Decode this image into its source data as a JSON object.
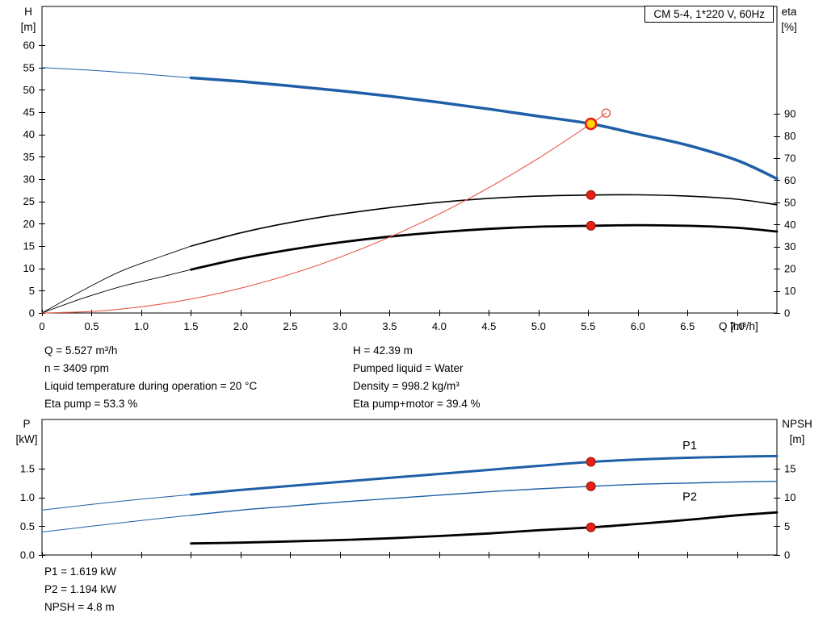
{
  "window": {
    "title_box": "CM 5-4, 1*220 V, 60Hz"
  },
  "labels": {
    "h_axis": [
      "H",
      "[m]"
    ],
    "eta_axis": [
      "eta",
      "[%]"
    ],
    "q_axis": "Q [m³/h]",
    "p_axis": [
      "P",
      "[kW]"
    ],
    "npsh_axis": [
      "NPSH",
      "[m]"
    ]
  },
  "info_panel": {
    "left": [
      "Q = 5.527 m³/h",
      "n = 3409 rpm",
      "Liquid temperature during operation = 20 °C",
      "Eta pump = 53.3 %"
    ],
    "right": [
      "H = 42.39 m",
      "Pumped liquid = Water",
      "Density = 998.2 kg/m³",
      "Eta pump+motor = 39.4 %"
    ]
  },
  "result_panel": [
    "P1 = 1.619 kW",
    "P2 = 1.194 kW",
    "NPSH = 4.8 m"
  ],
  "colors": {
    "blue": "#1f5fa8",
    "red": "#e8594b",
    "black": "#000000",
    "dot_red": "#e32119",
    "dot_edge": "#99120c",
    "duty_fill": "#ffd400",
    "axis": "#000000"
  },
  "chart_data": [
    {
      "type": "line",
      "name": "hq-eta-chart",
      "title": "CM 5-4, 1*220 V, 60Hz",
      "axes": {
        "x": {
          "label": "Q [m³/h]",
          "min": 0,
          "max": 7.4,
          "ticks": [
            0,
            0.5,
            1,
            1.5,
            2,
            2.5,
            3,
            3.5,
            4,
            4.5,
            5,
            5.5,
            6,
            6.5,
            7
          ],
          "tick_labels": [
            "0",
            "0.5",
            "1.0",
            "1.5",
            "2.0",
            "2.5",
            "3.0",
            "3.5",
            "4.0",
            "4.5",
            "5.0",
            "5.5",
            "6.0",
            "6.5",
            "7.0"
          ]
        },
        "left": {
          "label": "H [m]",
          "min": 0,
          "max": 68.7,
          "ticks": [
            0,
            5,
            10,
            15,
            20,
            25,
            30,
            35,
            40,
            45,
            50,
            55,
            60
          ],
          "tick_labels": [
            "0",
            "5",
            "10",
            "15",
            "20",
            "25",
            "30",
            "35",
            "40",
            "45",
            "50",
            "55",
            "60"
          ]
        },
        "right": {
          "label": "eta [%]",
          "min": 0,
          "max": 138.5,
          "ticks": [
            0,
            10,
            20,
            30,
            40,
            50,
            60,
            70,
            80,
            90
          ],
          "tick_labels": [
            "0",
            "10",
            "20",
            "30",
            "40",
            "50",
            "60",
            "70",
            "80",
            "90"
          ]
        }
      },
      "series": [
        {
          "name": "hq-curve-lead",
          "axis": "left",
          "color": "blue",
          "width": 1,
          "points": [
            [
              0,
              55
            ],
            [
              0.5,
              54.4
            ],
            [
              1.0,
              53.6
            ],
            [
              1.5,
              52.7
            ]
          ]
        },
        {
          "name": "hq-curve",
          "axis": "left",
          "color": "blue",
          "width": 3.5,
          "points": [
            [
              1.5,
              52.7
            ],
            [
              2,
              51.9
            ],
            [
              2.5,
              50.9
            ],
            [
              3,
              49.8
            ],
            [
              3.5,
              48.6
            ],
            [
              4,
              47.2
            ],
            [
              4.5,
              45.7
            ],
            [
              5,
              44.1
            ],
            [
              5.527,
              42.39
            ],
            [
              6,
              40.1
            ],
            [
              6.5,
              37.6
            ],
            [
              7,
              34.2
            ],
            [
              7.4,
              30.1
            ]
          ]
        },
        {
          "name": "eta-pump-lead",
          "axis": "right",
          "color": "black",
          "width": 0.9,
          "points": [
            [
              0,
              0
            ],
            [
              0.4,
              10
            ],
            [
              0.8,
              19
            ],
            [
              1.2,
              25.5
            ],
            [
              1.5,
              30.2
            ]
          ]
        },
        {
          "name": "eta-pump-curve",
          "axis": "right",
          "color": "black",
          "width": 1.6,
          "points": [
            [
              1.5,
              30.2
            ],
            [
              2,
              36.2
            ],
            [
              2.5,
              40.9
            ],
            [
              3,
              44.6
            ],
            [
              3.5,
              47.6
            ],
            [
              4,
              50
            ],
            [
              4.5,
              51.8
            ],
            [
              5,
              52.8
            ],
            [
              5.527,
              53.3
            ],
            [
              6,
              53.4
            ],
            [
              6.5,
              52.8
            ],
            [
              7,
              51.4
            ],
            [
              7.4,
              48.9
            ]
          ]
        },
        {
          "name": "eta-pump-motor-lead",
          "axis": "right",
          "color": "black",
          "width": 0.9,
          "points": [
            [
              0,
              0
            ],
            [
              0.4,
              6.5
            ],
            [
              0.8,
              12
            ],
            [
              1.2,
              16.3
            ],
            [
              1.5,
              19.6
            ]
          ]
        },
        {
          "name": "eta-pump-motor-curve",
          "axis": "right",
          "color": "black",
          "width": 2.8,
          "points": [
            [
              1.5,
              19.6
            ],
            [
              2,
              24.6
            ],
            [
              2.5,
              28.6
            ],
            [
              3,
              31.9
            ],
            [
              3.5,
              34.5
            ],
            [
              4,
              36.5
            ],
            [
              4.5,
              38
            ],
            [
              5,
              39
            ],
            [
              5.527,
              39.4
            ],
            [
              6,
              39.7
            ],
            [
              6.5,
              39.4
            ],
            [
              7,
              38.5
            ],
            [
              7.4,
              36.8
            ]
          ]
        },
        {
          "name": "system-curve",
          "axis": "left",
          "color": "red",
          "width": 1.1,
          "points": [
            [
              0,
              0
            ],
            [
              0.5,
              0.35
            ],
            [
              1,
              1.39
            ],
            [
              1.5,
              3.12
            ],
            [
              2,
              5.55
            ],
            [
              2.5,
              8.67
            ],
            [
              3,
              12.49
            ],
            [
              3.5,
              17.0
            ],
            [
              4,
              22.2
            ],
            [
              4.5,
              28.1
            ],
            [
              5,
              34.7
            ],
            [
              5.527,
              42.39
            ],
            [
              5.68,
              44.8
            ]
          ]
        }
      ],
      "markers": [
        {
          "name": "eta-pump-point",
          "q": 5.527,
          "v": 53.3,
          "axis": "right",
          "style": "dot"
        },
        {
          "name": "eta-pump-motor-point",
          "q": 5.527,
          "v": 39.4,
          "axis": "right",
          "style": "dot"
        },
        {
          "name": "projected-point",
          "q": 5.68,
          "v": 44.8,
          "axis": "left",
          "style": "open"
        },
        {
          "name": "duty-point",
          "q": 5.527,
          "v": 42.39,
          "axis": "left",
          "style": "duty"
        }
      ],
      "curve_labels": []
    },
    {
      "type": "line",
      "name": "power-npsh-chart",
      "title": "",
      "axes": {
        "x": {
          "label": "",
          "min": 0,
          "max": 7.4,
          "ticks": [
            0,
            0.5,
            1,
            1.5,
            2,
            2.5,
            3,
            3.5,
            4,
            4.5,
            5,
            5.5,
            6,
            6.5,
            7
          ]
        },
        "left": {
          "label": "P [kW]",
          "min": 0,
          "max": 2.356,
          "ticks": [
            0,
            0.5,
            1,
            1.5
          ],
          "tick_labels": [
            "0.0",
            "0.5",
            "1.0",
            "1.5"
          ]
        },
        "right": {
          "label": "NPSH [m]",
          "min": 0,
          "max": 23.56,
          "ticks": [
            0,
            5,
            10,
            15
          ],
          "tick_labels": [
            "0",
            "5",
            "10",
            "15"
          ]
        }
      },
      "series": [
        {
          "name": "p1-lead",
          "axis": "left",
          "color": "blue",
          "width": 1,
          "points": [
            [
              0,
              0.78
            ],
            [
              0.5,
              0.88
            ],
            [
              1,
              0.97
            ],
            [
              1.5,
              1.05
            ]
          ]
        },
        {
          "name": "p1-curve",
          "axis": "left",
          "color": "blue",
          "width": 3,
          "points": [
            [
              1.5,
              1.05
            ],
            [
              2,
              1.13
            ],
            [
              2.5,
              1.2
            ],
            [
              3,
              1.27
            ],
            [
              3.5,
              1.34
            ],
            [
              4,
              1.41
            ],
            [
              4.5,
              1.48
            ],
            [
              5,
              1.55
            ],
            [
              5.527,
              1.619
            ],
            [
              6,
              1.66
            ],
            [
              6.5,
              1.69
            ],
            [
              7,
              1.71
            ],
            [
              7.4,
              1.72
            ]
          ]
        },
        {
          "name": "p2-lead",
          "axis": "left",
          "color": "blue",
          "width": 1,
          "points": [
            [
              0,
              0.4
            ],
            [
              0.5,
              0.5
            ],
            [
              1,
              0.6
            ],
            [
              1.5,
              0.69
            ]
          ]
        },
        {
          "name": "p2-curve",
          "axis": "left",
          "color": "blue",
          "width": 1.4,
          "points": [
            [
              1.5,
              0.69
            ],
            [
              2,
              0.78
            ],
            [
              2.5,
              0.85
            ],
            [
              3,
              0.92
            ],
            [
              3.5,
              0.98
            ],
            [
              4,
              1.04
            ],
            [
              4.5,
              1.1
            ],
            [
              5,
              1.15
            ],
            [
              5.527,
              1.194
            ],
            [
              6,
              1.23
            ],
            [
              6.5,
              1.25
            ],
            [
              7,
              1.27
            ],
            [
              7.4,
              1.28
            ]
          ]
        },
        {
          "name": "npsh-curve",
          "axis": "right",
          "color": "black",
          "width": 2.8,
          "points": [
            [
              1.5,
              2.0
            ],
            [
              2,
              2.15
            ],
            [
              2.5,
              2.35
            ],
            [
              3,
              2.6
            ],
            [
              3.5,
              2.9
            ],
            [
              4,
              3.3
            ],
            [
              4.5,
              3.75
            ],
            [
              5,
              4.3
            ],
            [
              5.527,
              4.8
            ],
            [
              6,
              5.4
            ],
            [
              6.5,
              6.1
            ],
            [
              7,
              6.9
            ],
            [
              7.4,
              7.4
            ]
          ]
        }
      ],
      "markers": [
        {
          "name": "p1-point",
          "q": 5.527,
          "v": 1.619,
          "axis": "left",
          "style": "dot"
        },
        {
          "name": "p2-point",
          "q": 5.527,
          "v": 1.194,
          "axis": "left",
          "style": "dot"
        },
        {
          "name": "npsh-point",
          "q": 5.527,
          "v": 4.8,
          "axis": "right",
          "style": "dot"
        }
      ],
      "curve_labels": [
        {
          "text": "P1",
          "q": 6.45,
          "v": 1.84,
          "axis": "left",
          "color": "blue"
        },
        {
          "text": "P2",
          "q": 6.45,
          "v": 0.95,
          "axis": "left",
          "color": "blue"
        }
      ]
    }
  ]
}
